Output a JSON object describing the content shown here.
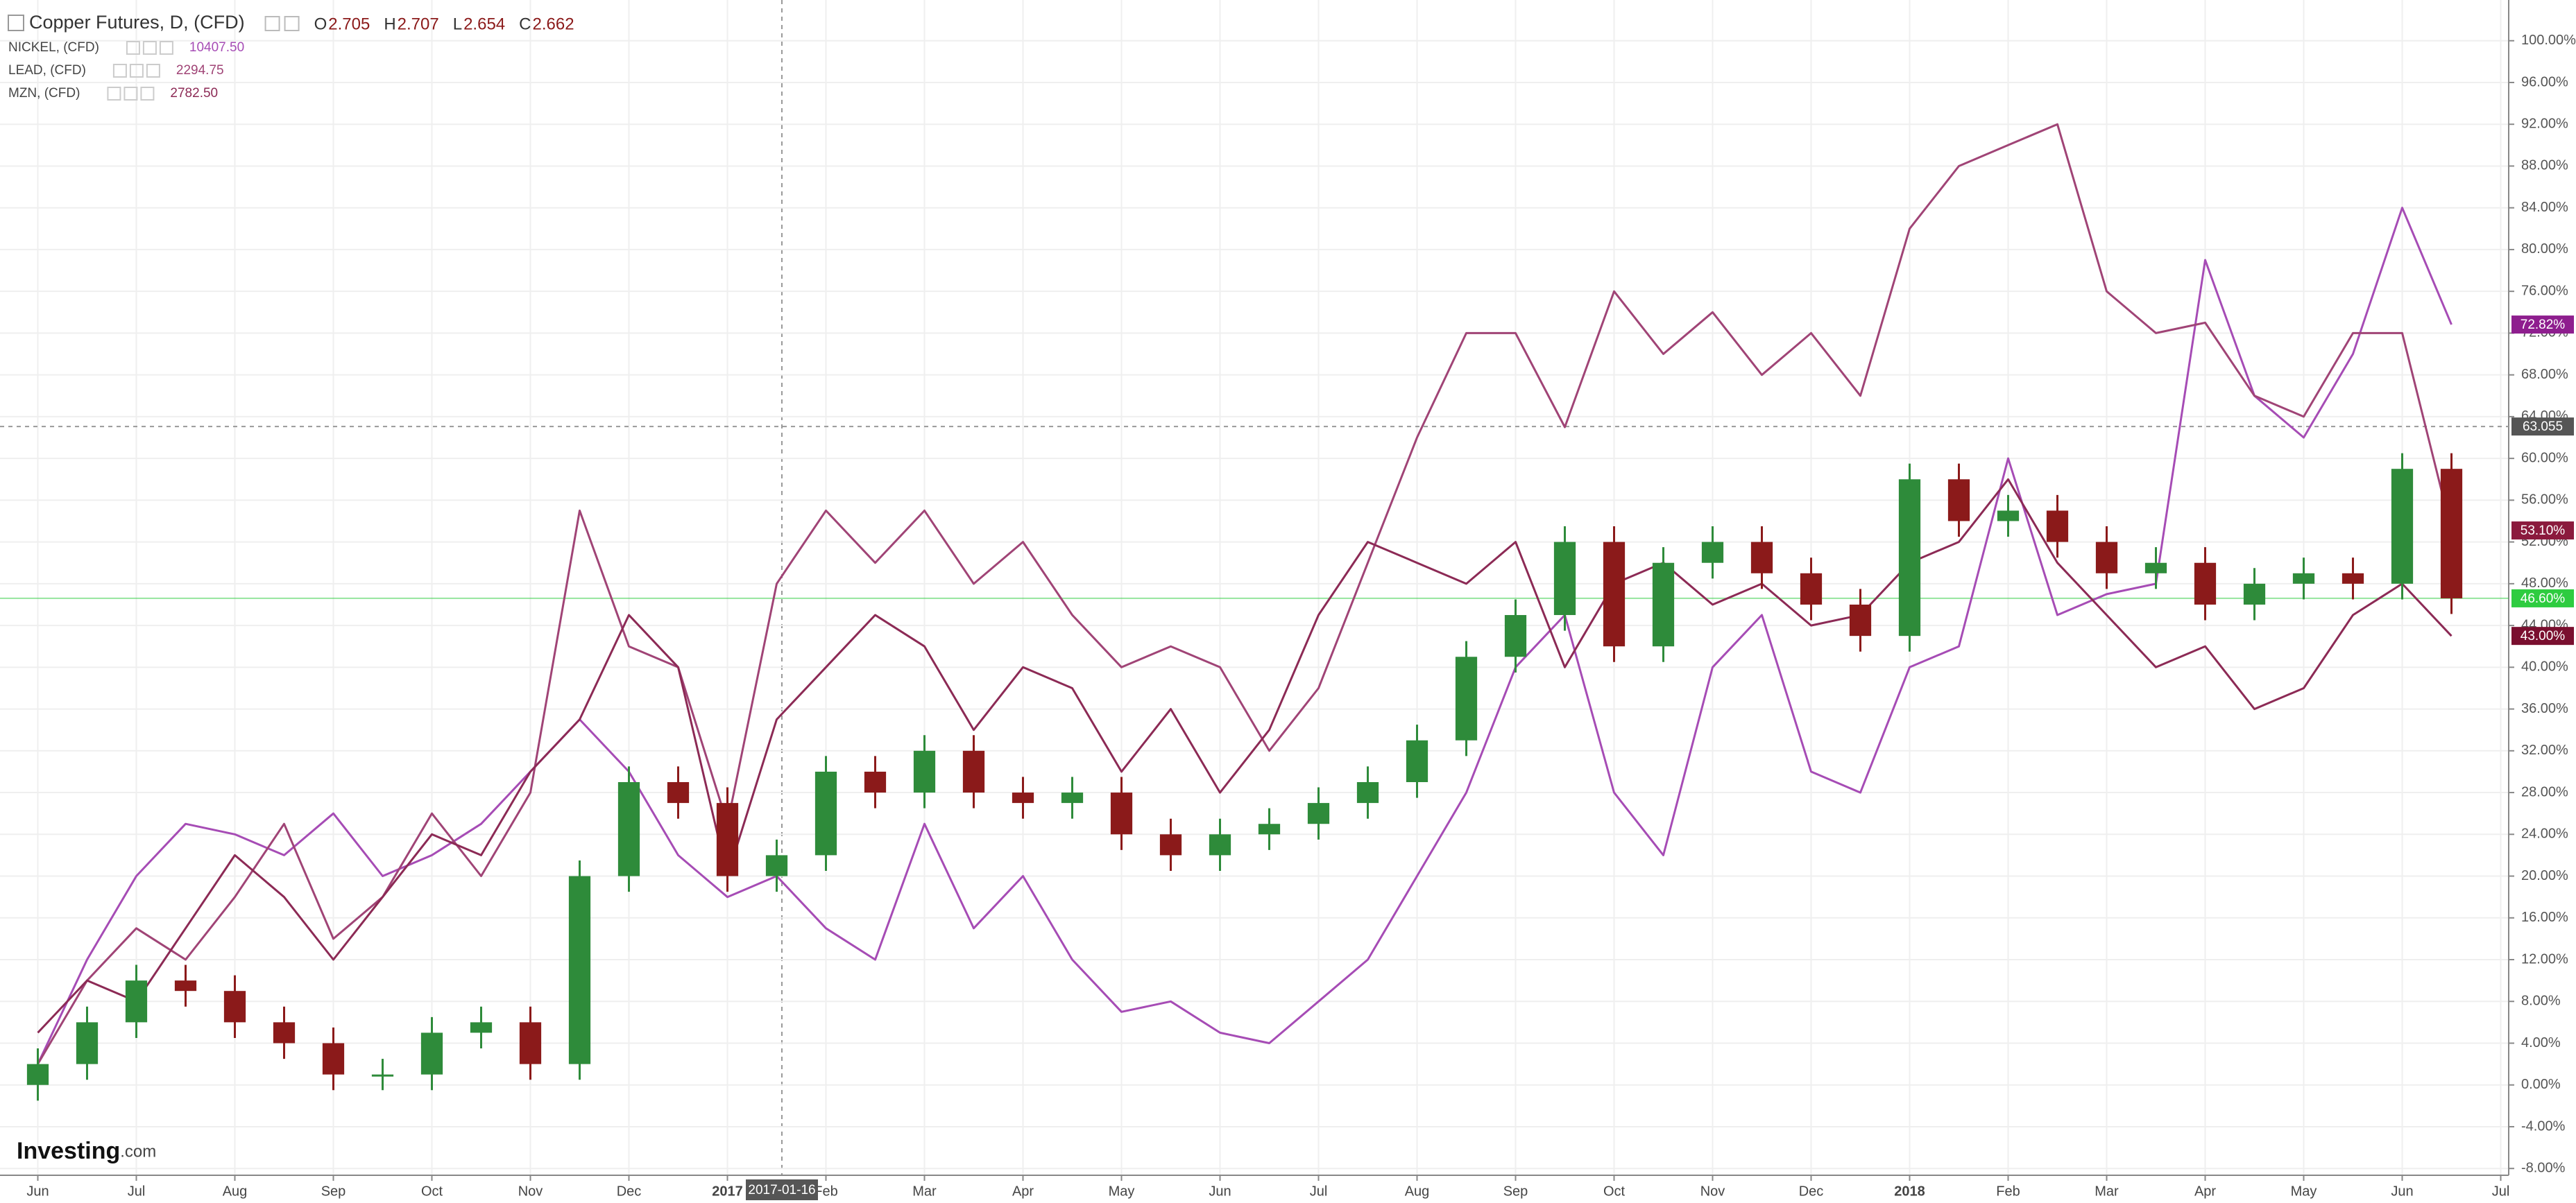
{
  "chart_data": {
    "type": "candlestick",
    "title": "Copper Futures, D, (CFD)",
    "ohlc_header": [
      {
        "key": "O",
        "value": "2.705"
      },
      {
        "key": "H",
        "value": "2.707"
      },
      {
        "key": "L",
        "value": "2.654"
      },
      {
        "key": "C",
        "value": "2.662"
      }
    ],
    "categories": [
      "Jun",
      null,
      "Jul",
      null,
      "Aug",
      null,
      "Sep",
      null,
      "Oct",
      null,
      "Nov",
      null,
      "Dec",
      null,
      "2017",
      null,
      "Feb",
      null,
      "Mar",
      null,
      "Apr",
      null,
      "May",
      null,
      "Jun",
      null,
      "Jul",
      null,
      "Aug",
      null,
      "Sep",
      null,
      "Oct",
      null,
      "Nov",
      null,
      "Dec",
      null,
      "2018",
      null,
      "Feb",
      null,
      "Mar",
      null,
      "Apr",
      null,
      "May",
      null,
      "Jun",
      null,
      "Jul"
    ],
    "open": [
      0,
      2,
      6,
      10,
      9,
      6,
      4,
      1,
      1,
      5,
      6,
      2,
      20,
      29,
      27,
      20,
      22,
      30,
      28,
      32,
      28,
      27,
      28,
      24,
      22,
      24,
      25,
      27,
      29,
      33,
      41,
      45,
      52,
      42,
      50,
      52,
      49,
      46,
      43,
      58,
      54,
      55,
      52,
      49,
      50,
      46,
      48,
      49,
      48,
      59,
      null
    ],
    "high": [
      3.5,
      7.5,
      11.5,
      11.5,
      10.5,
      7.5,
      5.5,
      2.5,
      6.5,
      7.5,
      7.5,
      21.5,
      30.5,
      30.5,
      28.5,
      23.5,
      31.5,
      31.5,
      33.5,
      33.5,
      29.5,
      29.5,
      29.5,
      25.5,
      25.5,
      26.5,
      28.5,
      30.5,
      34.5,
      42.5,
      46.5,
      53.5,
      53.5,
      51.5,
      53.5,
      53.5,
      50.5,
      47.5,
      59.5,
      59.5,
      56.5,
      56.5,
      53.5,
      51.5,
      51.5,
      49.5,
      50.5,
      50.5,
      60.5,
      60.5,
      null
    ],
    "low": [
      -1.5,
      0.5,
      4.5,
      7.5,
      4.5,
      2.5,
      -0.5,
      -0.5,
      -0.5,
      3.5,
      0.5,
      0.5,
      18.5,
      25.5,
      18.5,
      18.5,
      20.5,
      26.5,
      26.5,
      26.5,
      25.5,
      25.5,
      22.5,
      20.5,
      20.5,
      22.5,
      23.5,
      25.5,
      27.5,
      31.5,
      39.5,
      43.5,
      40.5,
      40.5,
      48.5,
      47.5,
      44.5,
      41.5,
      41.5,
      52.5,
      52.5,
      50.5,
      47.5,
      47.5,
      44.5,
      44.5,
      46.5,
      46.5,
      46.5,
      45.1,
      null
    ],
    "close": [
      2,
      6,
      10,
      9,
      6,
      4,
      1,
      1,
      5,
      6,
      2,
      20,
      29,
      27,
      20,
      22,
      30,
      28,
      32,
      28,
      27,
      28,
      24,
      22,
      24,
      25,
      27,
      29,
      33,
      41,
      45,
      52,
      42,
      50,
      52,
      49,
      46,
      43,
      58,
      54,
      55,
      52,
      49,
      50,
      46,
      48,
      49,
      48,
      59,
      46.6,
      null
    ],
    "last_label": "46.60%",
    "up_color": "#2e8b3a",
    "down_color": "#8b1a1a",
    "last_color": "#2ecc40",
    "series": [
      {
        "name": "NICKEL, (CFD)",
        "quote": "10407.50",
        "color": "#a64cb5",
        "label_color": "#8e1e8e",
        "last_label": "72.82%",
        "values": [
          2,
          12,
          20,
          25,
          24,
          22,
          26,
          20,
          22,
          25,
          30,
          35,
          30,
          22,
          18,
          20,
          15,
          12,
          25,
          15,
          20,
          12,
          7,
          8,
          5,
          4,
          8,
          12,
          20,
          28,
          40,
          45,
          28,
          22,
          40,
          45,
          30,
          28,
          40,
          42,
          60,
          45,
          47,
          48,
          79,
          66,
          62,
          70,
          84,
          72.82,
          null
        ]
      },
      {
        "name": "LEAD, (CFD)",
        "quote": "2294.75",
        "color": "#a04476",
        "label_color": "#8b1a3d",
        "last_label": "53.10%",
        "values": [
          2,
          10,
          15,
          12,
          18,
          25,
          14,
          18,
          26,
          20,
          28,
          55,
          42,
          40,
          25,
          48,
          55,
          50,
          55,
          48,
          52,
          45,
          40,
          42,
          40,
          32,
          38,
          50,
          62,
          72,
          72,
          63,
          76,
          70,
          74,
          68,
          72,
          66,
          82,
          88,
          90,
          92,
          76,
          72,
          73,
          66,
          64,
          72,
          72,
          53.1,
          null
        ]
      },
      {
        "name": "MZN, (CFD)",
        "quote": "2782.50",
        "color": "#8c2a55",
        "label_color": "#7a0f2f",
        "last_label": "43.00%",
        "values": [
          5,
          10,
          8,
          15,
          22,
          18,
          12,
          18,
          24,
          22,
          30,
          35,
          45,
          40,
          20,
          35,
          40,
          45,
          42,
          34,
          40,
          38,
          30,
          36,
          28,
          34,
          45,
          52,
          50,
          48,
          52,
          40,
          48,
          50,
          46,
          48,
          44,
          45,
          50,
          52,
          58,
          50,
          45,
          40,
          42,
          36,
          38,
          45,
          48,
          43.0,
          null
        ]
      }
    ],
    "ylim": [
      -8.65,
      103.9
    ],
    "yticks": [
      {
        "value": -8,
        "label": "-8.00%"
      },
      {
        "value": -4,
        "label": "-4.00%"
      },
      {
        "value": 0,
        "label": "0.00%"
      },
      {
        "value": 4,
        "label": "4.00%"
      },
      {
        "value": 8,
        "label": "8.00%"
      },
      {
        "value": 12,
        "label": "12.00%"
      },
      {
        "value": 16,
        "label": "16.00%"
      },
      {
        "value": 20,
        "label": "20.00%"
      },
      {
        "value": 24,
        "label": "24.00%"
      },
      {
        "value": 28,
        "label": "28.00%"
      },
      {
        "value": 32,
        "label": "32.00%"
      },
      {
        "value": 36,
        "label": "36.00%"
      },
      {
        "value": 40,
        "label": "40.00%"
      },
      {
        "value": 44,
        "label": "44.00%"
      },
      {
        "value": 48,
        "label": "48.00%"
      },
      {
        "value": 52,
        "label": "52.00%"
      },
      {
        "value": 56,
        "label": "56.00%"
      },
      {
        "value": 60,
        "label": "60.00%"
      },
      {
        "value": 64,
        "label": "64.00%"
      },
      {
        "value": 68,
        "label": "68.00%"
      },
      {
        "value": 72,
        "label": "72.00%"
      },
      {
        "value": 76,
        "label": "76.00%"
      },
      {
        "value": 80,
        "label": "80.00%"
      },
      {
        "value": 84,
        "label": "84.00%"
      },
      {
        "value": 88,
        "label": "88.00%"
      },
      {
        "value": 92,
        "label": "92.00%"
      },
      {
        "value": 96,
        "label": "96.00%"
      },
      {
        "value": 100,
        "label": "100.00%"
      }
    ],
    "grid": true,
    "crosshair": {
      "x_label": "2017-01-16",
      "y": {
        "value": 63.055,
        "label": "63.055"
      }
    }
  },
  "branding": {
    "name": "Investing",
    "suffix": ".com"
  }
}
